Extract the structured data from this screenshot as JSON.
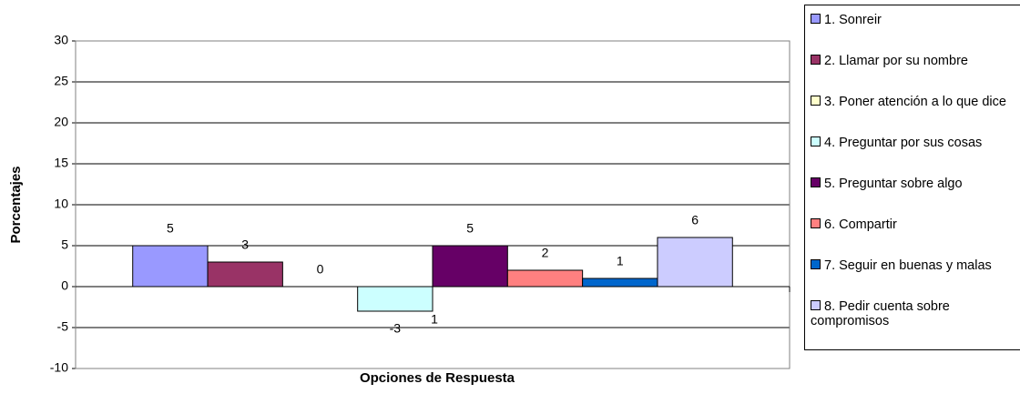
{
  "chart_data": {
    "type": "bar",
    "y_label": "Porcentajes",
    "x_label": "Opciones de Respuesta",
    "categories": [
      null
    ],
    "series": [
      {
        "name": "1. Sonreir",
        "color": "#9999ff",
        "values": [
          5
        ]
      },
      {
        "name": "2. Llamar por su nombre",
        "color": "#993366",
        "values": [
          3
        ]
      },
      {
        "name": "3. Poner atención a lo que dice",
        "color": "#ffffcc",
        "values": [
          0
        ]
      },
      {
        "name": "4. Preguntar por sus cosas",
        "color": "#ccffff",
        "values": [
          -3
        ]
      },
      {
        "name": "5. Preguntar sobre algo",
        "color": "#660066",
        "values": [
          5
        ]
      },
      {
        "name": "6. Compartir",
        "color": "#ff8080",
        "values": [
          2
        ]
      },
      {
        "name": "7. Seguir en buenas y malas",
        "color": "#0066cc",
        "values": [
          1
        ]
      },
      {
        "name": "8. Pedir cuenta sobre compromisos",
        "color": "#ccccff",
        "values": [
          6
        ]
      }
    ],
    "annotations": [
      "1"
    ],
    "ylim": [
      -10,
      30
    ],
    "yticks": [
      -10,
      -5,
      0,
      5,
      10,
      15,
      20,
      25,
      30
    ],
    "grid": true,
    "legend": "right"
  }
}
